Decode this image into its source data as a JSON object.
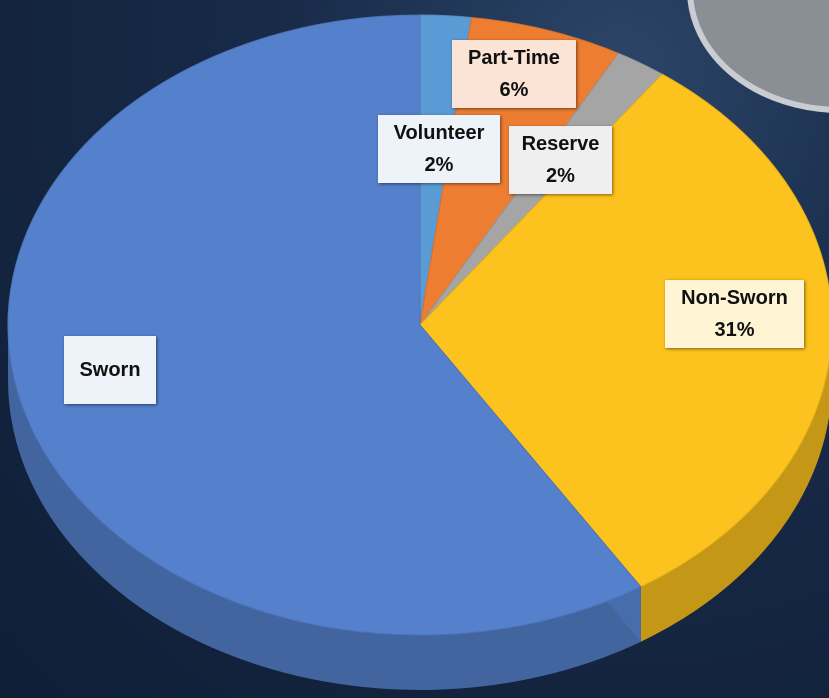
{
  "chart_data": {
    "type": "pie",
    "categories": [
      "Volunteer",
      "Part-Time",
      "Reserve",
      "Non-Sworn",
      "Sworn"
    ],
    "values": [
      2,
      6,
      2,
      31,
      59
    ],
    "value_labels": [
      "2%",
      "6%",
      "2%",
      "31%",
      null
    ],
    "colors": [
      "#5b9bd5",
      "#ed7d31",
      "#a5a5a5",
      "#fcc21d",
      "#5580cc"
    ]
  }
}
